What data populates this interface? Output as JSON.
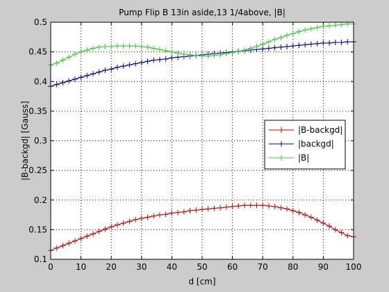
{
  "chart_data": {
    "type": "line",
    "title": "Pump Flip B 13in aside,13 1/4above, |B|",
    "xlabel": "d [cm]",
    "ylabel": "|B-backgd| [Gauss]",
    "xlim": [
      0,
      100
    ],
    "ylim": [
      0.1,
      0.5
    ],
    "xticks": [
      "0",
      "10",
      "20",
      "30",
      "40",
      "50",
      "60",
      "70",
      "80",
      "90",
      "100"
    ],
    "yticks": [
      "0.1",
      "0.15",
      "0.2",
      "0.25",
      "0.3",
      "0.35",
      "0.4",
      "0.45",
      "0.5"
    ],
    "grid": true,
    "legend_position": "right",
    "marker": "+",
    "x": [
      0,
      2,
      4,
      6,
      8,
      10,
      12,
      14,
      16,
      18,
      20,
      22,
      24,
      26,
      28,
      30,
      32,
      34,
      36,
      38,
      40,
      42,
      44,
      46,
      48,
      50,
      52,
      54,
      56,
      58,
      60,
      62,
      64,
      66,
      68,
      70,
      72,
      74,
      76,
      78,
      80,
      82,
      84,
      86,
      88,
      90,
      92,
      94,
      96,
      98,
      100
    ],
    "series": [
      {
        "name": "|B-backgd|",
        "color": "#cc0000",
        "values": [
          0.115,
          0.119,
          0.123,
          0.127,
          0.131,
          0.135,
          0.139,
          0.143,
          0.147,
          0.151,
          0.155,
          0.158,
          0.161,
          0.164,
          0.167,
          0.169,
          0.171,
          0.173,
          0.175,
          0.176,
          0.178,
          0.179,
          0.18,
          0.182,
          0.183,
          0.184,
          0.185,
          0.186,
          0.187,
          0.188,
          0.189,
          0.19,
          0.191,
          0.191,
          0.191,
          0.191,
          0.19,
          0.189,
          0.187,
          0.185,
          0.182,
          0.179,
          0.175,
          0.171,
          0.166,
          0.161,
          0.156,
          0.15,
          0.145,
          0.14,
          0.138
        ]
      },
      {
        "name": "|backgd|",
        "color": "#000099",
        "values": [
          0.392,
          0.395,
          0.398,
          0.401,
          0.404,
          0.407,
          0.41,
          0.413,
          0.416,
          0.419,
          0.421,
          0.424,
          0.426,
          0.428,
          0.43,
          0.432,
          0.434,
          0.436,
          0.437,
          0.438,
          0.44,
          0.441,
          0.442,
          0.443,
          0.444,
          0.445,
          0.446,
          0.447,
          0.448,
          0.449,
          0.45,
          0.451,
          0.452,
          0.453,
          0.454,
          0.455,
          0.456,
          0.457,
          0.458,
          0.459,
          0.46,
          0.461,
          0.462,
          0.463,
          0.464,
          0.465,
          0.465,
          0.466,
          0.466,
          0.467,
          0.467
        ]
      },
      {
        "name": "|B|",
        "color": "#33cc33",
        "values": [
          0.428,
          0.431,
          0.436,
          0.441,
          0.446,
          0.45,
          0.453,
          0.456,
          0.458,
          0.459,
          0.459,
          0.46,
          0.46,
          0.46,
          0.46,
          0.459,
          0.458,
          0.456,
          0.454,
          0.452,
          0.45,
          0.448,
          0.446,
          0.445,
          0.444,
          0.443,
          0.443,
          0.444,
          0.445,
          0.447,
          0.449,
          0.451,
          0.453,
          0.456,
          0.459,
          0.463,
          0.467,
          0.471,
          0.474,
          0.478,
          0.481,
          0.484,
          0.487,
          0.489,
          0.491,
          0.493,
          0.494,
          0.495,
          0.496,
          0.497,
          0.497
        ]
      }
    ]
  }
}
